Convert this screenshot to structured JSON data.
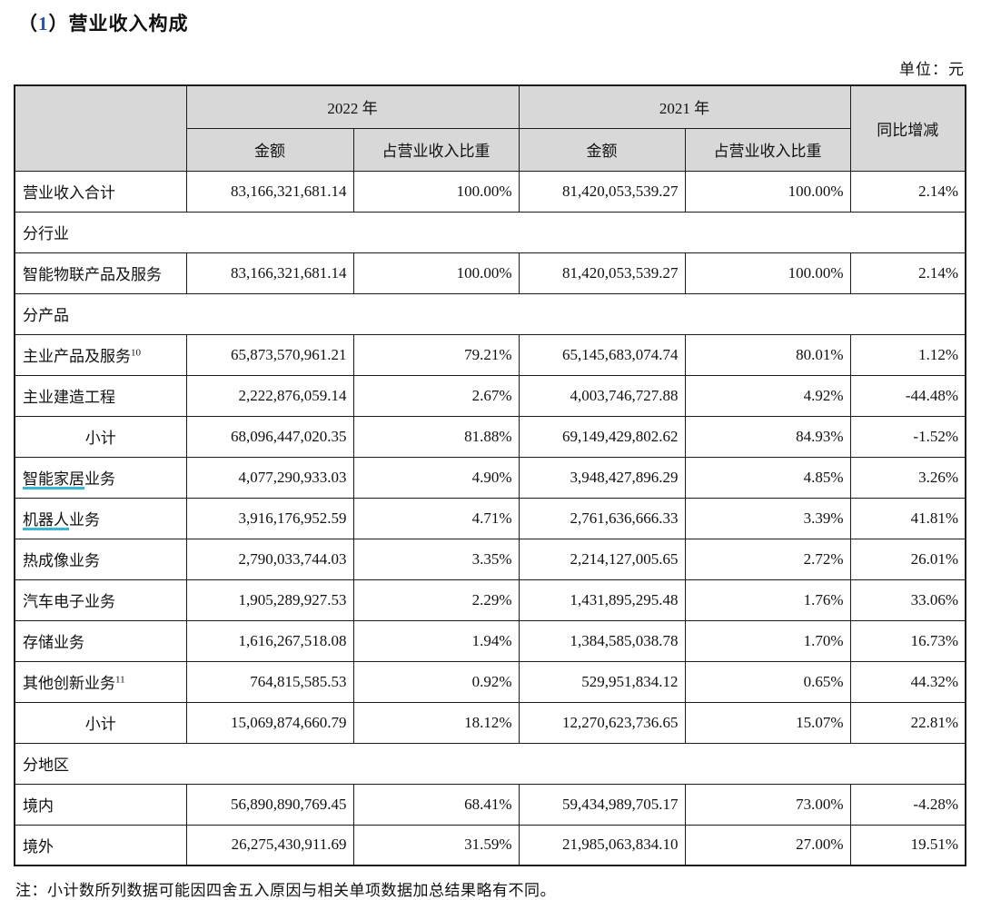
{
  "page": {
    "title_prefix": "（",
    "title_number": "1",
    "title_suffix": "）营业收入构成",
    "unit_label": "单位：元",
    "note": "注：小计数所列数据可能因四舍五入原因与相关单项数据加总结果略有不同。"
  },
  "colors": {
    "header_gray": "#d8d8d8",
    "border": "#1c1c1c",
    "annotation_underline_cyan": "#39b7cf",
    "title_number_blue": "#2457a7"
  },
  "table": {
    "header": {
      "year_2022": "2022 年",
      "year_2021": "2021 年",
      "yoy": "同比增减",
      "amount": "金额",
      "share": "占营业收入比重"
    },
    "column_keys": [
      "amount-2022",
      "share-2022",
      "amount-2021",
      "share-2021",
      "yoy-change"
    ],
    "rows": [
      {
        "type": "data",
        "label": "营业收入合计",
        "shaded": true,
        "cells": [
          "83,166,321,681.14",
          "100.00%",
          "81,420,053,539.27",
          "100.00%",
          "2.14%"
        ]
      },
      {
        "type": "section",
        "label": "分行业"
      },
      {
        "type": "data",
        "label": "智能物联产品及服务",
        "cells": [
          "83,166,321,681.14",
          "100.00%",
          "81,420,053,539.27",
          "100.00%",
          "2.14%"
        ]
      },
      {
        "type": "section",
        "label": "分产品"
      },
      {
        "type": "data",
        "label": "主业产品及服务",
        "sup": "10",
        "cells": [
          "65,873,570,961.21",
          "79.21%",
          "65,145,683,074.74",
          "80.01%",
          "1.12%"
        ]
      },
      {
        "type": "data",
        "label": "主业建造工程",
        "cells": [
          "2,222,876,059.14",
          "2.67%",
          "4,003,746,727.88",
          "4.92%",
          "-44.48%"
        ]
      },
      {
        "type": "data",
        "label": "小计",
        "align": "center",
        "cells": [
          "68,096,447,020.35",
          "81.88%",
          "69,149,429,802.62",
          "84.93%",
          "-1.52%"
        ]
      },
      {
        "type": "data",
        "label": "智能家居业务",
        "underline_chars": 4,
        "cells": [
          "4,077,290,933.03",
          "4.90%",
          "3,948,427,896.29",
          "4.85%",
          "3.26%"
        ]
      },
      {
        "type": "data",
        "label": "机器人业务",
        "underline_chars": 3,
        "cells": [
          "3,916,176,952.59",
          "4.71%",
          "2,761,636,666.33",
          "3.39%",
          "41.81%"
        ]
      },
      {
        "type": "data",
        "label": "热成像业务",
        "cells": [
          "2,790,033,744.03",
          "3.35%",
          "2,214,127,005.65",
          "2.72%",
          "26.01%"
        ]
      },
      {
        "type": "data",
        "label": "汽车电子业务",
        "cells": [
          "1,905,289,927.53",
          "2.29%",
          "1,431,895,295.48",
          "1.76%",
          "33.06%"
        ]
      },
      {
        "type": "data",
        "label": "存储业务",
        "cells": [
          "1,616,267,518.08",
          "1.94%",
          "1,384,585,038.78",
          "1.70%",
          "16.73%"
        ]
      },
      {
        "type": "data",
        "label": "其他创新业务",
        "sup": "11",
        "cells": [
          "764,815,585.53",
          "0.92%",
          "529,951,834.12",
          "0.65%",
          "44.32%"
        ]
      },
      {
        "type": "data",
        "label": "小计",
        "align": "center",
        "cells": [
          "15,069,874,660.79",
          "18.12%",
          "12,270,623,736.65",
          "15.07%",
          "22.81%"
        ]
      },
      {
        "type": "section",
        "label": "分地区"
      },
      {
        "type": "data",
        "label": "境内",
        "cells": [
          "56,890,890,769.45",
          "68.41%",
          "59,434,989,705.17",
          "73.00%",
          "-4.28%"
        ]
      },
      {
        "type": "data",
        "label": "境外",
        "cells": [
          "26,275,430,911.69",
          "31.59%",
          "21,985,063,834.10",
          "27.00%",
          "19.51%"
        ]
      }
    ]
  }
}
